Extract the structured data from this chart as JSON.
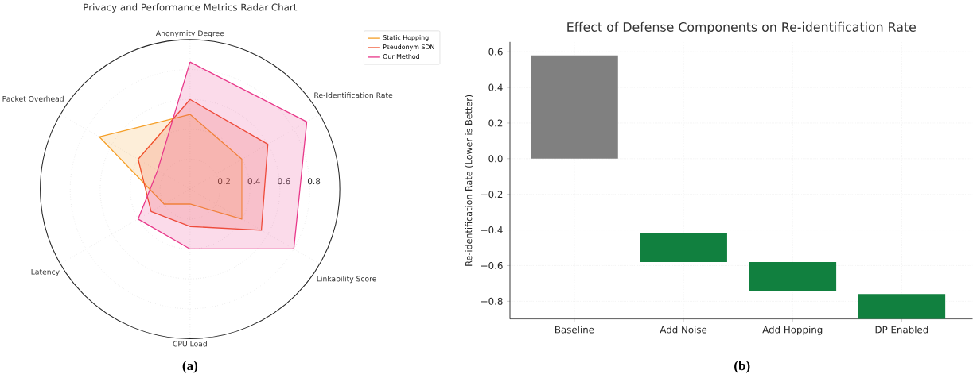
{
  "chart_data": [
    {
      "type": "radar",
      "title": "Privacy and Performance Metrics Radar Chart",
      "categories": [
        "Anonymity Degree",
        "Re-Identification Rate",
        "Linkability Score",
        "CPU Load",
        "Latency",
        "Packet Overhead"
      ],
      "series": [
        {
          "name": "Static Hopping",
          "color": "#f5a02a",
          "values": [
            0.5,
            0.4,
            0.4,
            0.1,
            0.2,
            0.7
          ]
        },
        {
          "name": "Pseudonym SDN",
          "color": "#f0502a",
          "values": [
            0.6,
            0.6,
            0.55,
            0.25,
            0.3,
            0.4
          ]
        },
        {
          "name": "Our Method",
          "color": "#e8388a",
          "values": [
            0.85,
            0.9,
            0.8,
            0.4,
            0.4,
            0.25
          ]
        }
      ],
      "ylim": [
        0,
        1
      ],
      "yticks": [
        0.2,
        0.4,
        0.6,
        0.8
      ],
      "grid": true,
      "legend": "top right",
      "annotations": [
        "(a)"
      ]
    },
    {
      "type": "bar",
      "title": "Effect of Defense Components on Re-identification Rate",
      "ylabel": "Re-identification Rate (Lower is Better)",
      "categories": [
        "Baseline",
        "Add Noise",
        "Add Hopping",
        "DP Enabled"
      ],
      "base": [
        0,
        -0.42,
        -0.58,
        -0.76
      ],
      "values": [
        0.58,
        -0.16,
        -0.16,
        -0.14
      ],
      "colors": [
        "#808080",
        "#11803f",
        "#11803f",
        "#11803f"
      ],
      "ylim": [
        -0.9,
        0.655
      ],
      "yticks": [
        {
          "value": -0.8,
          "label": "−0.8"
        },
        {
          "value": -0.6,
          "label": "−0.6"
        },
        {
          "value": -0.4,
          "label": "−0.4"
        },
        {
          "value": -0.2,
          "label": "−0.2"
        },
        {
          "value": 0,
          "label": "0.0"
        },
        0.2,
        0.4,
        0.6
      ],
      "grid": true,
      "annotations": [
        "(b)"
      ]
    }
  ]
}
